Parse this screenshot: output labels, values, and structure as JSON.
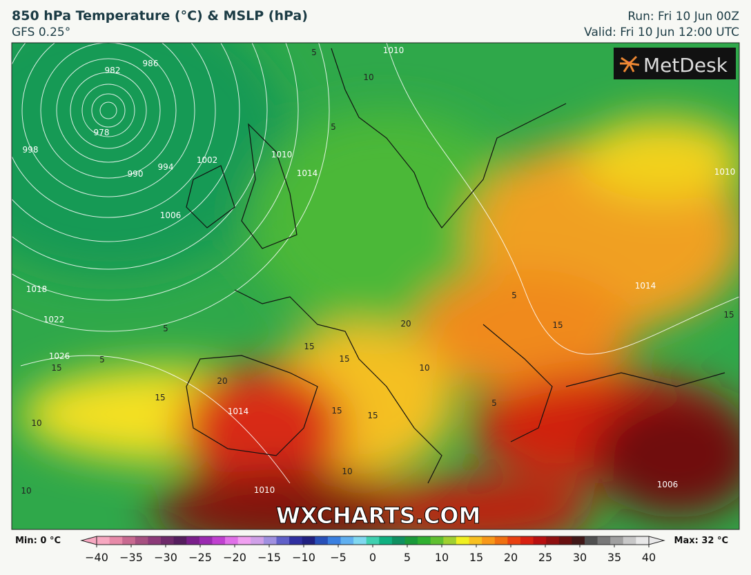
{
  "header": {
    "title": "850 hPa Temperature (°C) & MSLP (hPa)",
    "model": "GFS 0.25°",
    "run": "Run: Fri 10 Jun 00Z",
    "valid": "Valid: Fri 10 Jun 12:00 UTC"
  },
  "logo": "MetDesk",
  "watermark": "WXCHARTS.COM",
  "contour_labels": [
    "982",
    "986",
    "978",
    "998",
    "990",
    "994",
    "1002",
    "1006",
    "1010",
    "1014",
    "1018",
    "1022",
    "1026",
    "1014",
    "1010",
    "1006",
    "1014",
    "1010",
    "1010",
    "5",
    "5",
    "5",
    "5",
    "10",
    "10",
    "10",
    "10",
    "15",
    "15",
    "15",
    "15",
    "15",
    "15",
    "20",
    "20",
    "10",
    "5",
    "15",
    "15",
    "5"
  ],
  "colorbar": {
    "min_label": "Min: 0 °C",
    "max_label": "Max: 32 °C",
    "range": [
      -40,
      40
    ],
    "ticks": [
      {
        "value": -40,
        "label": "−40"
      },
      {
        "value": -35,
        "label": "−35"
      },
      {
        "value": -30,
        "label": "−30"
      },
      {
        "value": -25,
        "label": "−25"
      },
      {
        "value": -20,
        "label": "−20"
      },
      {
        "value": -15,
        "label": "−15"
      },
      {
        "value": -10,
        "label": "−10"
      },
      {
        "value": -5,
        "label": "−5"
      },
      0,
      5,
      10,
      15,
      20,
      25,
      30,
      35,
      40
    ],
    "colors": [
      "#f7a8c0",
      "#e78aa8",
      "#c86a90",
      "#a65080",
      "#8c3a78",
      "#6e2a6a",
      "#551e5e",
      "#7a1f8a",
      "#9a2ab0",
      "#c040d0",
      "#e070e8",
      "#f0a0f0",
      "#d0a0e8",
      "#a090e0",
      "#6060c8",
      "#3030a0",
      "#202080",
      "#2850b8",
      "#3a80e0",
      "#60b0f0",
      "#80d8f0",
      "#40d0b0",
      "#10b080",
      "#109060",
      "#1a9a3a",
      "#30b030",
      "#60c030",
      "#a0d030",
      "#f0f020",
      "#f8c020",
      "#f89818",
      "#f07010",
      "#e84010",
      "#d82010",
      "#b81010",
      "#901010",
      "#681010",
      "#401818",
      "#505050",
      "#787878",
      "#a0a0a0",
      "#c8c8c8",
      "#e8e8e8"
    ]
  }
}
